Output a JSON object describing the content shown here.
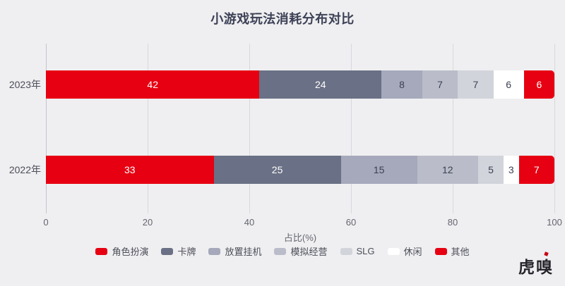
{
  "title": "小游戏玩法消耗分布对比",
  "colors": {
    "background": "#efeff1",
    "gridline": "#d9d9de",
    "axis_line": "#c5c5cb",
    "title_text": "#3d4156",
    "tick_text": "#64666f",
    "category_text": "#4c4e59",
    "watermark_text": "#26262c",
    "watermark_accent": "#c8000f"
  },
  "chart_data": {
    "type": "bar",
    "orientation": "horizontal_stacked",
    "title": "小游戏玩法消耗分布对比",
    "categories": [
      "2023年",
      "2022年"
    ],
    "series": [
      {
        "name": "角色扮演",
        "color": "#e60012",
        "value_text_color": "#ffffff",
        "values": [
          42,
          33
        ]
      },
      {
        "name": "卡牌",
        "color": "#6a7085",
        "value_text_color": "#ffffff",
        "values": [
          24,
          25
        ]
      },
      {
        "name": "放置挂机",
        "color": "#a5a9bb",
        "value_text_color": "#3c4052",
        "values": [
          8,
          15
        ]
      },
      {
        "name": "模拟经营",
        "color": "#babdc9",
        "value_text_color": "#3c4052",
        "values": [
          7,
          12
        ]
      },
      {
        "name": "SLG",
        "color": "#d2d4db",
        "value_text_color": "#3c4052",
        "values": [
          7,
          5
        ]
      },
      {
        "name": "休闲",
        "color": "#ffffff",
        "value_text_color": "#3c4052",
        "values": [
          6,
          3
        ]
      },
      {
        "name": "其他",
        "color": "#e60012",
        "value_text_color": "#ffffff",
        "values": [
          6,
          7
        ]
      }
    ],
    "xlabel": "占比(%)",
    "x_ticks": [
      0,
      20,
      40,
      60,
      80,
      100
    ],
    "xlim": [
      0,
      100
    ],
    "grid": true,
    "legend_position": "bottom"
  },
  "watermark": {
    "text": "虎嗅"
  }
}
